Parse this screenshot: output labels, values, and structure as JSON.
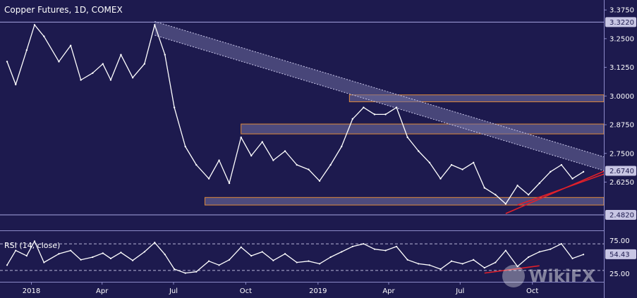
{
  "window": {
    "title": "Copper Futures, 1D, COMEX"
  },
  "watermark": {
    "text": "WikiFX"
  },
  "colors": {
    "background": "#1d1a4e",
    "price_line": "#ffffff",
    "zone_fill": "#8a84b8",
    "zone_border": "#e08a3a",
    "trendline": "#e0202a",
    "channel_fill": "#6c6c9c",
    "tag_bg": "#c8c6e4",
    "tag_text": "#1d1a4e",
    "axis_text": "#ffffff",
    "rsi_dash": "#b8b6d8"
  },
  "chart_data": [
    {
      "type": "line",
      "title": "Copper Futures, 1D, COMEX",
      "ylim": [
        2.43,
        3.4
      ],
      "y_ticks": [
        "2.6250",
        "2.7500",
        "2.8750",
        "3.0000",
        "3.1250",
        "3.2500",
        "3.3750"
      ],
      "x_ticks": [
        "2018",
        "Apr",
        "Jul",
        "Oct",
        "2019",
        "Apr",
        "Jul",
        "Oct"
      ],
      "price_tags": [
        {
          "label": "3.3220",
          "value": 3.322
        },
        {
          "label": "2.6740",
          "value": 2.674
        },
        {
          "label": "2.4820",
          "value": 2.482
        }
      ],
      "horizontal_lines": [
        3.322,
        2.482
      ],
      "zones": [
        {
          "from": "2019-02-10",
          "to": "end",
          "low": 2.975,
          "high": 3.005
        },
        {
          "from": "2018-09-25",
          "to": "end",
          "low": 2.835,
          "high": 2.878
        },
        {
          "from": "2018-08-10",
          "to": "end",
          "low": 2.525,
          "high": 2.558
        }
      ],
      "channel": {
        "start": "2018-06-07",
        "end": "end",
        "start_top": 3.325,
        "start_bottom": 3.265,
        "end_top": 2.735,
        "end_bottom": 2.675
      },
      "trendlines": [
        {
          "x": [
            "2019-08-28",
            "end"
          ],
          "y": [
            2.488,
            2.672
          ]
        },
        {
          "x": [
            "2019-09-12",
            "end"
          ],
          "y": [
            2.525,
            2.66
          ]
        }
      ],
      "series": [
        {
          "x": [
            "2017-12-01",
            "2017-12-12",
            "2017-12-26",
            "2018-01-05",
            "2018-01-17",
            "2018-02-05",
            "2018-02-20",
            "2018-03-05",
            "2018-03-20",
            "2018-04-02",
            "2018-04-12",
            "2018-04-25",
            "2018-05-10",
            "2018-05-25",
            "2018-06-07",
            "2018-06-20",
            "2018-07-02",
            "2018-07-16",
            "2018-07-30",
            "2018-08-15",
            "2018-08-28",
            "2018-09-10",
            "2018-09-25",
            "2018-10-08",
            "2018-10-22",
            "2018-11-05",
            "2018-11-20",
            "2018-12-05",
            "2018-12-20",
            "2019-01-03",
            "2019-01-17",
            "2019-01-31",
            "2019-02-14",
            "2019-02-28",
            "2019-03-14",
            "2019-03-28",
            "2019-04-11",
            "2019-04-25",
            "2019-05-09",
            "2019-05-23",
            "2019-06-06",
            "2019-06-20",
            "2019-07-04",
            "2019-07-18",
            "2019-08-01",
            "2019-08-15",
            "2019-08-28",
            "2019-09-12",
            "2019-09-26",
            "2019-10-10",
            "2019-10-24",
            "2019-11-07",
            "2019-11-21",
            "2019-12-05"
          ],
          "y": [
            3.15,
            3.05,
            3.2,
            3.31,
            3.26,
            3.15,
            3.22,
            3.07,
            3.1,
            3.14,
            3.07,
            3.18,
            3.08,
            3.14,
            3.31,
            3.18,
            2.95,
            2.78,
            2.7,
            2.64,
            2.72,
            2.62,
            2.82,
            2.74,
            2.8,
            2.72,
            2.76,
            2.7,
            2.68,
            2.63,
            2.7,
            2.78,
            2.9,
            2.95,
            2.92,
            2.92,
            2.95,
            2.82,
            2.76,
            2.71,
            2.64,
            2.7,
            2.68,
            2.71,
            2.6,
            2.57,
            2.53,
            2.61,
            2.57,
            2.62,
            2.67,
            2.7,
            2.64,
            2.67
          ]
        }
      ]
    },
    {
      "type": "line",
      "title": "RSI (14, close)",
      "ylim": [
        15,
        85
      ],
      "y_ticks": [
        "75.00",
        "25.00"
      ],
      "value_tag": {
        "label": "54.43",
        "value": 54.43
      },
      "dashed_lines": [
        70,
        30
      ],
      "trendline": {
        "x": [
          "2019-08-01",
          "2019-10-10"
        ],
        "y": [
          26,
          37
        ]
      },
      "series": [
        {
          "x": [
            "2017-12-01",
            "2017-12-12",
            "2017-12-26",
            "2018-01-05",
            "2018-01-17",
            "2018-02-05",
            "2018-02-20",
            "2018-03-05",
            "2018-03-20",
            "2018-04-02",
            "2018-04-12",
            "2018-04-25",
            "2018-05-10",
            "2018-05-25",
            "2018-06-07",
            "2018-06-20",
            "2018-07-02",
            "2018-07-16",
            "2018-07-30",
            "2018-08-15",
            "2018-08-28",
            "2018-09-10",
            "2018-09-25",
            "2018-10-08",
            "2018-10-22",
            "2018-11-05",
            "2018-11-20",
            "2018-12-05",
            "2018-12-20",
            "2019-01-03",
            "2019-01-17",
            "2019-01-31",
            "2019-02-14",
            "2019-02-28",
            "2019-03-14",
            "2019-03-28",
            "2019-04-11",
            "2019-04-25",
            "2019-05-09",
            "2019-05-23",
            "2019-06-06",
            "2019-06-20",
            "2019-07-04",
            "2019-07-18",
            "2019-08-01",
            "2019-08-15",
            "2019-08-28",
            "2019-09-12",
            "2019-09-26",
            "2019-10-10",
            "2019-10-24",
            "2019-11-07",
            "2019-11-21",
            "2019-12-05"
          ],
          "y": [
            38,
            60,
            52,
            74,
            42,
            55,
            60,
            46,
            50,
            56,
            48,
            57,
            45,
            58,
            72,
            54,
            32,
            26,
            28,
            44,
            38,
            46,
            65,
            52,
            58,
            45,
            55,
            42,
            44,
            40,
            50,
            58,
            66,
            70,
            62,
            60,
            66,
            46,
            40,
            38,
            32,
            44,
            40,
            46,
            34,
            42,
            60,
            36,
            50,
            58,
            62,
            70,
            48,
            54
          ]
        }
      ]
    }
  ]
}
